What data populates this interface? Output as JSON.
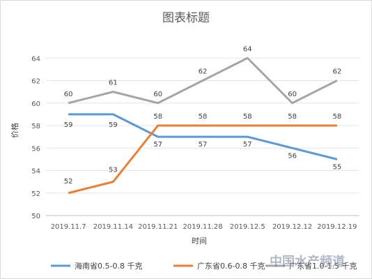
{
  "chart_data": {
    "type": "line",
    "title": "图表标题",
    "xlabel": "时间",
    "ylabel": "价格",
    "categories": [
      "2019.11.7",
      "2019.11.14",
      "2019.11.21",
      "2019.11.28",
      "2019.12.5",
      "2019.12.12",
      "2019.12.19"
    ],
    "ylim": [
      50,
      66
    ],
    "yticks": [
      50,
      52,
      54,
      56,
      58,
      60,
      62,
      64
    ],
    "grid": true,
    "legend": "bottom",
    "series": [
      {
        "name": "海南省0.5-0.8 千克",
        "color": "#5b9bd5",
        "values": [
          59,
          59,
          57,
          57,
          57,
          56,
          55
        ]
      },
      {
        "name": "广东省0.6-0.8 千克",
        "color": "#ed7d31",
        "values": [
          52,
          53,
          58,
          58,
          58,
          58,
          58
        ]
      },
      {
        "name": "广东省1.0-1.5 千克",
        "color": "#a5a5a5",
        "values": [
          60,
          61,
          60,
          62,
          64,
          60,
          62
        ]
      }
    ]
  },
  "watermark": {
    "text": "中国水产频道"
  }
}
